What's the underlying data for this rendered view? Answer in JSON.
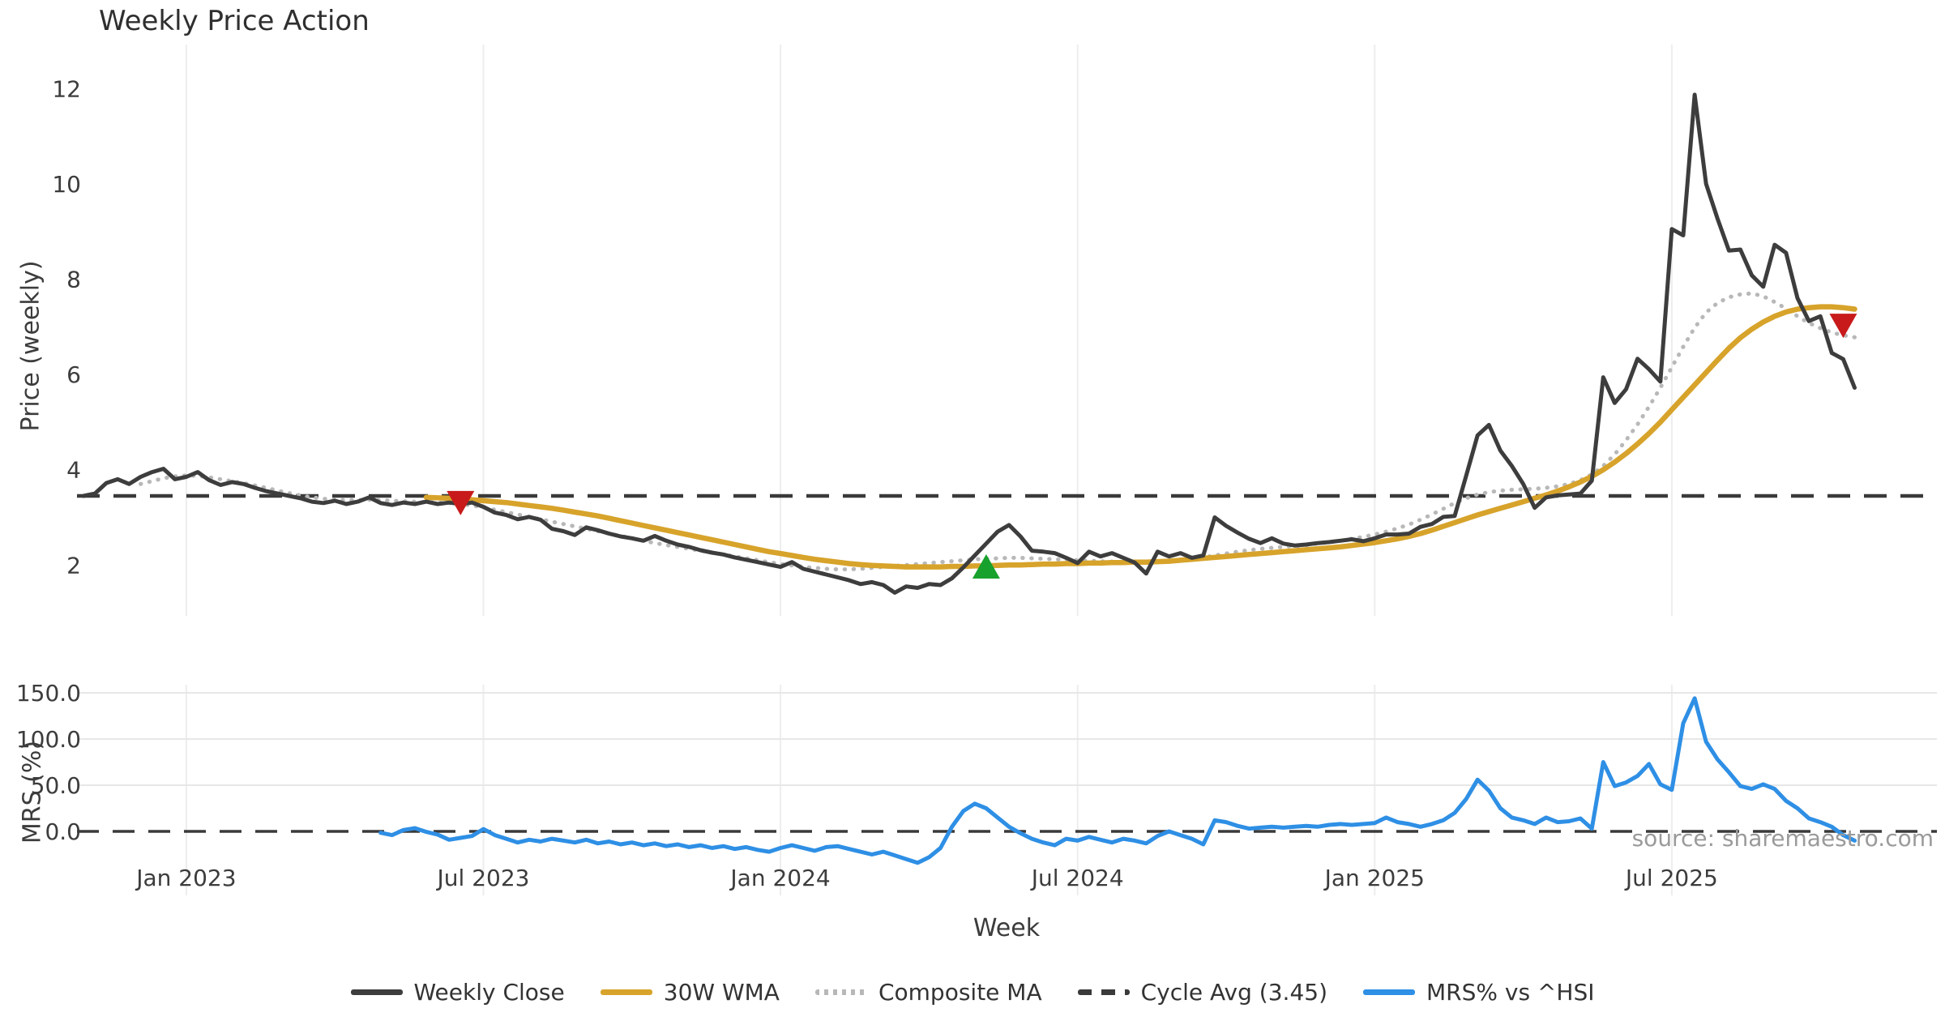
{
  "title": "Weekly Price Action",
  "xlabel": "Week",
  "source_text": "source: sharemaestro.com",
  "price_panel": {
    "ylabel": "Price (weekly)"
  },
  "mrs_panel": {
    "ylabel": "MRS (%)"
  },
  "colors": {
    "close": "#3d3d3d",
    "wma": "#d7a32a",
    "composite": "#b8b8b8",
    "cycle": "#3a3a3a",
    "mrs": "#2e8fe5",
    "sell_marker": "#c81a1a",
    "buy_marker": "#18a12c",
    "gridline": "#ededed",
    "tick_text": "#3c3c3c",
    "source_text": "#9a9a9a"
  },
  "legend": [
    {
      "label": "Weekly Close",
      "style": "solid",
      "color": "#3d3d3d"
    },
    {
      "label": "30W WMA",
      "style": "solid",
      "color": "#d7a32a"
    },
    {
      "label": "Composite MA",
      "style": "dotted",
      "color": "#b8b8b8"
    },
    {
      "label": "Cycle Avg (3.45)",
      "style": "dashed",
      "color": "#3a3a3a"
    },
    {
      "label": "MRS% vs ^HSI",
      "style": "solid",
      "color": "#2e8fe5"
    }
  ],
  "chart_data": {
    "type": "line",
    "title": "Weekly Price Action",
    "x_unit": "weeks",
    "start_date": "2022-10-31",
    "xlabel": "Week",
    "xticks": [
      {
        "week": 9,
        "label": "Jan 2023"
      },
      {
        "week": 35,
        "label": "Jul 2023"
      },
      {
        "week": 61,
        "label": "Jan 2024"
      },
      {
        "week": 87,
        "label": "Jul 2024"
      },
      {
        "week": 113,
        "label": "Jan 2025"
      },
      {
        "week": 139,
        "label": "Jul 2025"
      }
    ],
    "panels": [
      {
        "id": "price",
        "ylabel": "Price (weekly)",
        "ylim": [
          1.0,
          12.9
        ],
        "yticks": [
          2,
          4,
          6,
          8,
          10,
          12
        ],
        "ytick_labels": [
          "2",
          "4",
          "6",
          "8",
          "10",
          "12"
        ],
        "grid": "vertical-only",
        "cycle_avg": 3.45,
        "series": [
          {
            "name": "Weekly Close",
            "style": "solid",
            "color": "#3d3d3d",
            "start_week": 0,
            "values": [
              3.45,
              3.5,
              3.72,
              3.8,
              3.7,
              3.85,
              3.95,
              4.02,
              3.8,
              3.85,
              3.95,
              3.78,
              3.68,
              3.74,
              3.7,
              3.62,
              3.55,
              3.5,
              3.45,
              3.4,
              3.33,
              3.3,
              3.35,
              3.28,
              3.33,
              3.42,
              3.3,
              3.26,
              3.31,
              3.28,
              3.33,
              3.28,
              3.31,
              3.28,
              3.31,
              3.22,
              3.1,
              3.05,
              2.96,
              3.01,
              2.95,
              2.76,
              2.71,
              2.63,
              2.79,
              2.73,
              2.66,
              2.6,
              2.56,
              2.51,
              2.61,
              2.51,
              2.43,
              2.38,
              2.31,
              2.26,
              2.22,
              2.16,
              2.11,
              2.06,
              2.01,
              1.96,
              2.06,
              1.92,
              1.86,
              1.8,
              1.74,
              1.68,
              1.6,
              1.64,
              1.58,
              1.42,
              1.55,
              1.52,
              1.6,
              1.58,
              1.72,
              1.95,
              2.2,
              2.45,
              2.7,
              2.84,
              2.6,
              2.3,
              2.28,
              2.25,
              2.15,
              2.04,
              2.28,
              2.18,
              2.25,
              2.15,
              2.05,
              1.82,
              2.28,
              2.18,
              2.25,
              2.15,
              2.2,
              3.0,
              2.82,
              2.68,
              2.55,
              2.46,
              2.56,
              2.45,
              2.41,
              2.43,
              2.46,
              2.48,
              2.51,
              2.54,
              2.5,
              2.56,
              2.64,
              2.64,
              2.66,
              2.8,
              2.86,
              3.01,
              3.03,
              3.87,
              4.72,
              4.94,
              4.4,
              4.08,
              3.7,
              3.2,
              3.42,
              3.46,
              3.48,
              3.5,
              3.77,
              5.94,
              5.4,
              5.69,
              6.33,
              6.11,
              5.85,
              9.05,
              8.92,
              11.87,
              10.0,
              9.27,
              8.6,
              8.62,
              8.08,
              7.84,
              8.72,
              8.55,
              7.6,
              7.12,
              7.22,
              6.45,
              6.32,
              5.72
            ]
          },
          {
            "name": "30W WMA",
            "style": "solid",
            "color": "#d7a32a",
            "start_week": 30,
            "values": [
              3.42,
              3.41,
              3.4,
              3.39,
              3.37,
              3.35,
              3.33,
              3.31,
              3.28,
              3.25,
              3.22,
              3.19,
              3.15,
              3.11,
              3.07,
              3.03,
              2.98,
              2.93,
              2.88,
              2.83,
              2.78,
              2.73,
              2.68,
              2.63,
              2.58,
              2.53,
              2.48,
              2.43,
              2.38,
              2.33,
              2.28,
              2.24,
              2.2,
              2.16,
              2.12,
              2.09,
              2.06,
              2.03,
              2.01,
              1.99,
              1.98,
              1.97,
              1.96,
              1.96,
              1.96,
              1.96,
              1.97,
              1.97,
              1.98,
              1.98,
              1.99,
              2.0,
              2.0,
              2.01,
              2.02,
              2.02,
              2.03,
              2.03,
              2.04,
              2.04,
              2.05,
              2.05,
              2.06,
              2.06,
              2.07,
              2.08,
              2.1,
              2.12,
              2.14,
              2.16,
              2.18,
              2.2,
              2.22,
              2.24,
              2.26,
              2.28,
              2.3,
              2.32,
              2.34,
              2.36,
              2.38,
              2.41,
              2.44,
              2.47,
              2.51,
              2.55,
              2.6,
              2.66,
              2.73,
              2.81,
              2.89,
              2.97,
              3.05,
              3.12,
              3.19,
              3.26,
              3.33,
              3.4,
              3.47,
              3.55,
              3.64,
              3.74,
              3.86,
              4.0,
              4.16,
              4.34,
              4.54,
              4.76,
              5.0,
              5.26,
              5.52,
              5.78,
              6.04,
              6.3,
              6.55,
              6.77,
              6.95,
              7.1,
              7.22,
              7.31,
              7.37,
              7.4,
              7.42,
              7.42,
              7.4,
              7.37
            ]
          },
          {
            "name": "Composite MA",
            "style": "dotted",
            "color": "#b8b8b8",
            "start_week": 5,
            "values": [
              3.7,
              3.76,
              3.82,
              3.86,
              3.88,
              3.87,
              3.84,
              3.8,
              3.76,
              3.72,
              3.67,
              3.62,
              3.56,
              3.51,
              3.46,
              3.42,
              3.39,
              3.37,
              3.36,
              3.36,
              3.37,
              3.36,
              3.35,
              3.34,
              3.33,
              3.32,
              3.31,
              3.3,
              3.28,
              3.25,
              3.21,
              3.16,
              3.11,
              3.06,
              3.01,
              2.96,
              2.91,
              2.86,
              2.81,
              2.76,
              2.71,
              2.66,
              2.61,
              2.56,
              2.51,
              2.46,
              2.42,
              2.38,
              2.34,
              2.3,
              2.26,
              2.22,
              2.18,
              2.14,
              2.1,
              2.06,
              2.02,
              1.99,
              1.96,
              1.94,
              1.92,
              1.91,
              1.91,
              1.92,
              1.94,
              1.96,
              1.98,
              2.0,
              2.02,
              2.04,
              2.06,
              2.08,
              2.1,
              2.12,
              2.13,
              2.14,
              2.15,
              2.15,
              2.14,
              2.13,
              2.12,
              2.11,
              2.1,
              2.09,
              2.08,
              2.07,
              2.06,
              2.06,
              2.05,
              2.06,
              2.08,
              2.1,
              2.13,
              2.16,
              2.2,
              2.24,
              2.28,
              2.31,
              2.34,
              2.36,
              2.38,
              2.4,
              2.42,
              2.45,
              2.48,
              2.51,
              2.55,
              2.59,
              2.64,
              2.7,
              2.77,
              2.85,
              2.95,
              3.06,
              3.18,
              3.3,
              3.4,
              3.48,
              3.53,
              3.56,
              3.58,
              3.59,
              3.6,
              3.62,
              3.65,
              3.7,
              3.78,
              3.9,
              4.08,
              4.32,
              4.62,
              4.95,
              5.32,
              5.72,
              6.15,
              6.58,
              6.98,
              7.3,
              7.5,
              7.62,
              7.68,
              7.7,
              7.64,
              7.52,
              7.38,
              7.22,
              7.08,
              6.97,
              6.88,
              6.82,
              6.78
            ]
          }
        ],
        "markers": [
          {
            "week": 33,
            "price": 3.3,
            "shape": "triangle-down",
            "color": "#c81a1a",
            "meaning": "sell-signal"
          },
          {
            "week": 79,
            "price": 1.97,
            "shape": "triangle-up",
            "color": "#18a12c",
            "meaning": "buy-signal"
          },
          {
            "week": 154,
            "price": 7.02,
            "shape": "triangle-down",
            "color": "#c81a1a",
            "meaning": "sell-signal"
          }
        ]
      },
      {
        "id": "mrs",
        "ylabel": "MRS (%)",
        "ylim": [
          -70,
          160
        ],
        "yticks": [
          0,
          50,
          100,
          150
        ],
        "ytick_labels": [
          "0.0",
          "50.0",
          "100.0",
          "150.0"
        ],
        "grid": "horizontal-and-vertical",
        "zero_line_dashed": true,
        "series": [
          {
            "name": "MRS% vs ^HSI",
            "style": "solid",
            "color": "#2e8fe5",
            "start_week": 26,
            "values": [
              -1.5,
              -4,
              1.5,
              3.5,
              -0.5,
              -3.5,
              -9,
              -7,
              -5,
              2.5,
              -4,
              -8,
              -12,
              -9,
              -11,
              -8,
              -10,
              -12,
              -9,
              -13,
              -11,
              -14,
              -12,
              -15,
              -13,
              -16,
              -14,
              -17,
              -15,
              -18,
              -16,
              -19,
              -17,
              -20,
              -22,
              -18,
              -15,
              -18,
              -21,
              -17,
              -16,
              -19,
              -22,
              -25,
              -22,
              -26,
              -30,
              -34,
              -28,
              -18,
              5,
              22,
              30,
              25,
              15,
              5,
              -2,
              -8,
              -12,
              -15,
              -8,
              -10,
              -6,
              -9,
              -12,
              -8,
              -10,
              -13,
              -5,
              0,
              -4,
              -8,
              -14,
              12,
              10,
              6,
              3,
              4,
              5,
              4,
              5,
              6,
              5,
              7,
              8,
              7,
              8,
              9,
              15,
              10,
              8,
              5,
              8,
              12,
              20,
              35,
              56,
              44,
              25,
              15,
              12,
              8,
              15,
              10,
              11,
              14,
              3,
              75,
              49,
              53,
              60,
              73,
              51,
              45,
              117,
              144,
              97,
              78,
              64,
              49,
              46,
              51,
              46,
              33,
              25,
              14,
              10,
              5,
              -4,
              -10
            ]
          }
        ]
      }
    ]
  }
}
